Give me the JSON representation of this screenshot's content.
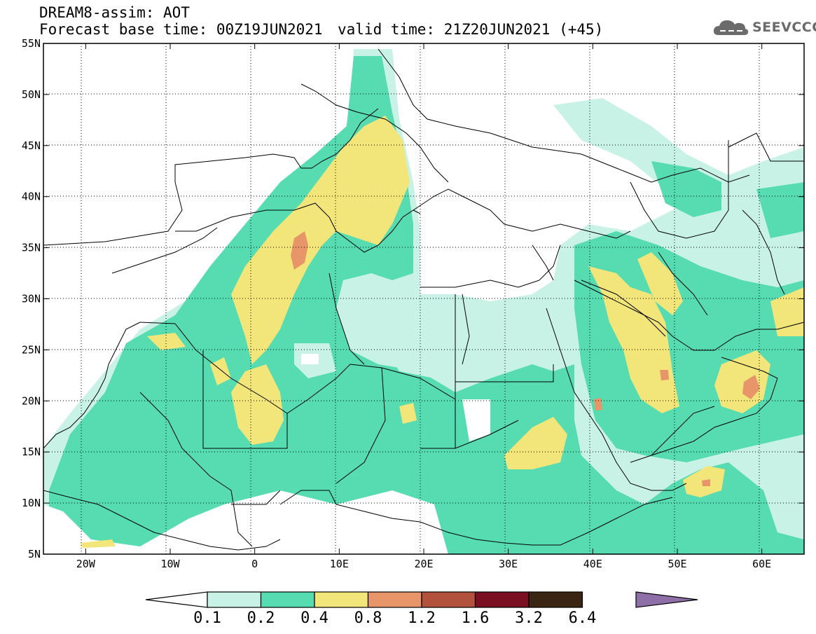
{
  "header": {
    "line1": "DREAM8-assim: AOT",
    "line2": "Forecast base time: 00Z19JUN2021",
    "valid": "valid time: 21Z20JUN2021 (+45)"
  },
  "logo": {
    "text": "SEEVCCC",
    "icon": "cloud-icon"
  },
  "map": {
    "lon_range": [
      -25,
      65
    ],
    "lat_range": [
      5,
      55
    ],
    "x_tick_labels": [
      "20W",
      "10W",
      "0",
      "10E",
      "20E",
      "30E",
      "40E",
      "50E",
      "60E"
    ],
    "y_tick_labels": [
      "5N",
      "10N",
      "15N",
      "20N",
      "25N",
      "30N",
      "35N",
      "40N",
      "45N",
      "50N",
      "55N"
    ],
    "gridlines": "dotted"
  },
  "colorbar": {
    "labels": [
      "0.1",
      "0.2",
      "0.4",
      "0.8",
      "1.2",
      "1.6",
      "3.2",
      "6.4"
    ],
    "colors": [
      "#c9f2e6",
      "#56dcb0",
      "#f2e57a",
      "#e8956a",
      "#b3523c",
      "#7a0f22",
      "#3a2414",
      "#8e6fa8"
    ],
    "under_color": "#ffffff"
  }
}
